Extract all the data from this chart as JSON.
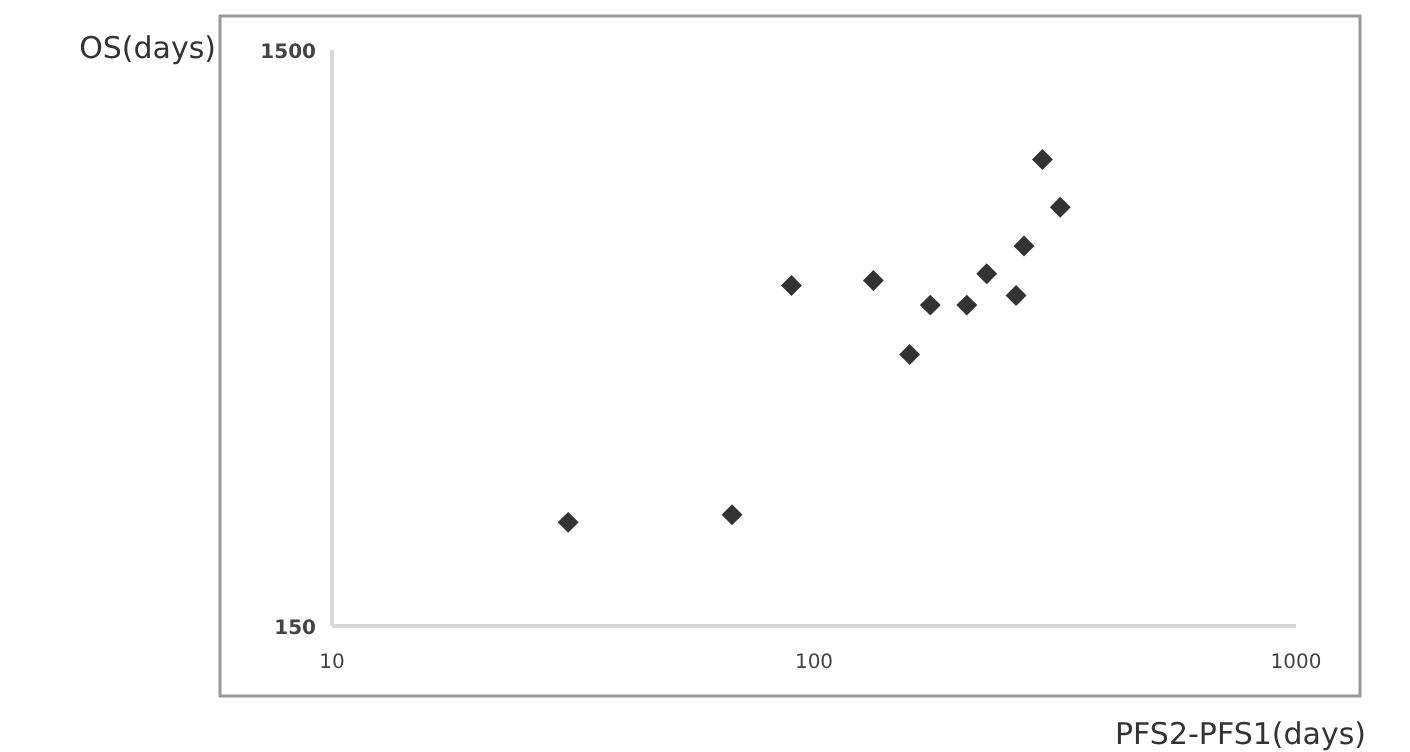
{
  "chart_data": {
    "type": "scatter",
    "xlabel": "PFS2-PFS1(days)",
    "ylabel": "OS(days)",
    "log": "xy",
    "xlim": [
      10,
      1000
    ],
    "xticks": [
      10,
      100,
      1000
    ],
    "ylim": [
      150,
      1500
    ],
    "yticks": [
      150,
      1500
    ],
    "grid": false,
    "marker": "diamond",
    "series": [
      {
        "color": "#333333",
        "x": [
          30.9,
          67.6,
          89.8,
          132.8,
          157.9,
          174.3,
          207.5,
          228.2,
          262.6,
          272.7,
          297.8,
          324.3
        ],
        "values": [
          227,
          234,
          585,
          597,
          444,
          541,
          541,
          613,
          562,
          685,
          968,
          800
        ]
      }
    ]
  }
}
